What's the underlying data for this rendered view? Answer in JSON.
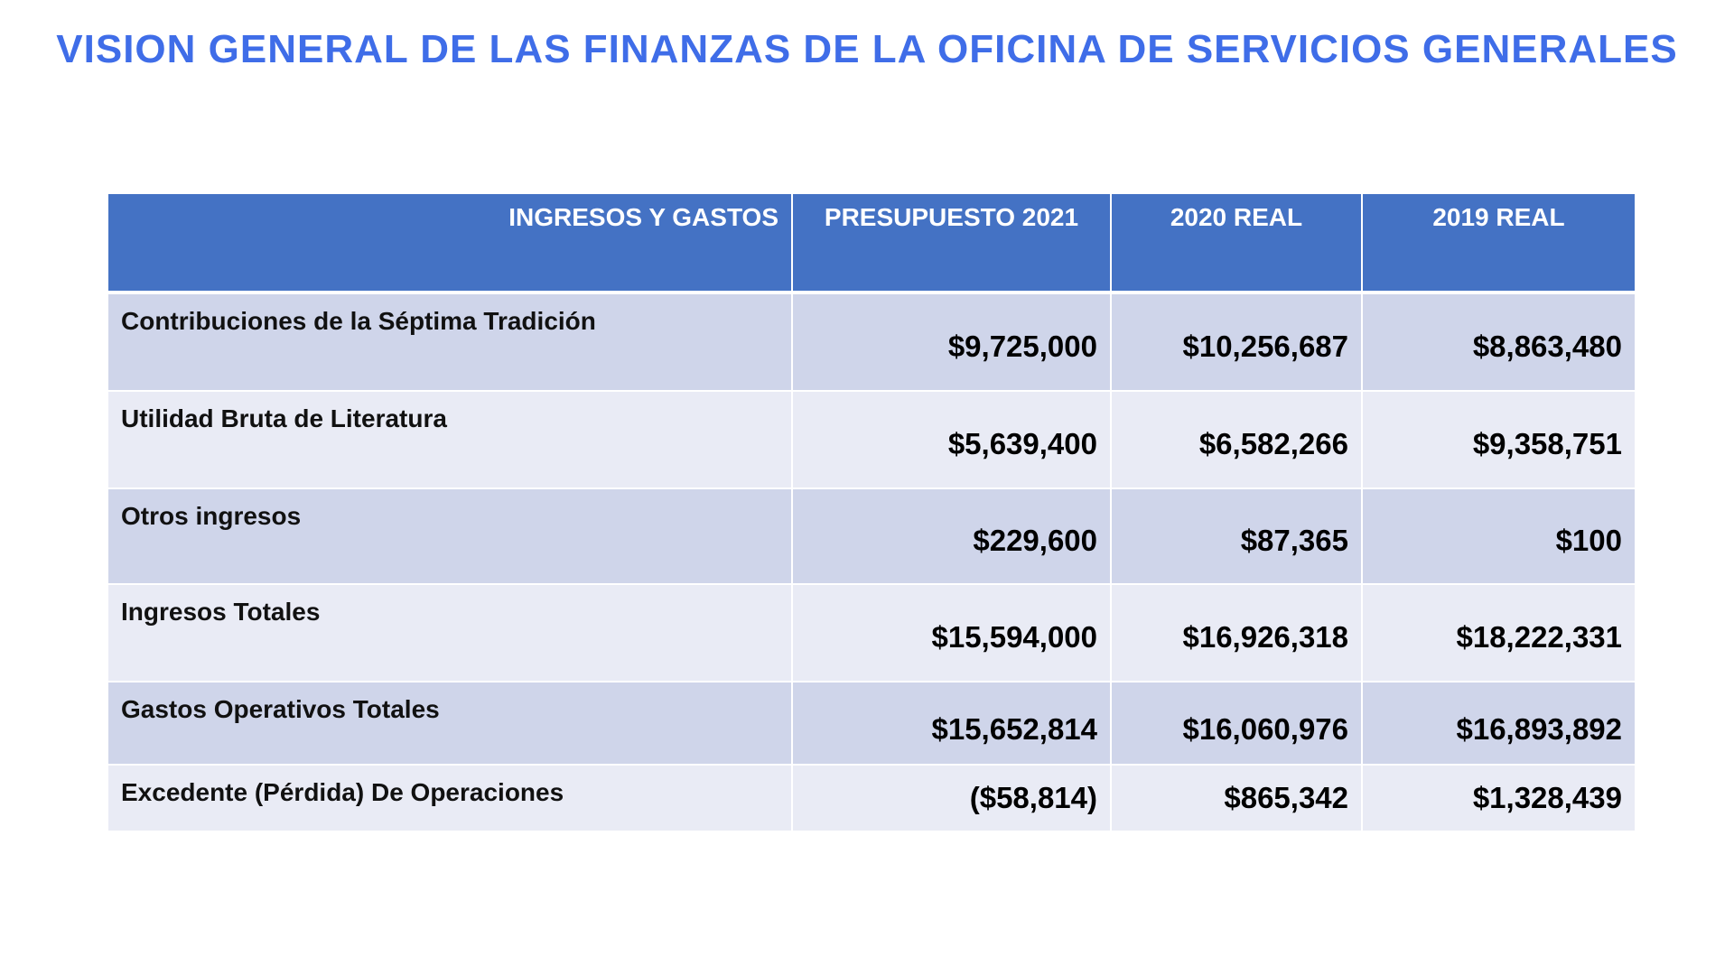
{
  "title": "VISION GENERAL DE LAS FINANZAS DE LA OFICINA DE SERVICIOS GENERALES",
  "table": {
    "headers": [
      "INGRESOS Y GASTOS",
      "PRESUPUESTO 2021",
      "2020 REAL",
      "2019 REAL"
    ],
    "rows": [
      {
        "label": "Contribuciones de la Séptima Tradición",
        "values": [
          "$9,725,000",
          "$10,256,687",
          "$8,863,480"
        ]
      },
      {
        "label": "Utilidad Bruta de Literatura",
        "values": [
          "$5,639,400",
          "$6,582,266",
          "$9,358,751"
        ]
      },
      {
        "label": "Otros ingresos",
        "values": [
          "$229,600",
          "$87,365",
          "$100"
        ]
      },
      {
        "label": "Ingresos Totales",
        "values": [
          "$15,594,000",
          "$16,926,318",
          "$18,222,331"
        ]
      },
      {
        "label": "Gastos Operativos Totales",
        "values": [
          "$15,652,814",
          "$16,060,976",
          "$16,893,892"
        ]
      },
      {
        "label": "Excedente (Pérdida) De Operaciones",
        "values": [
          "($58,814)",
          "$865,342",
          "$1,328,439"
        ]
      }
    ]
  },
  "colors": {
    "title": "#3f6de8",
    "header_bg": "#4472c4",
    "row_odd": "#cfd5ea",
    "row_even": "#e9ebf5"
  }
}
